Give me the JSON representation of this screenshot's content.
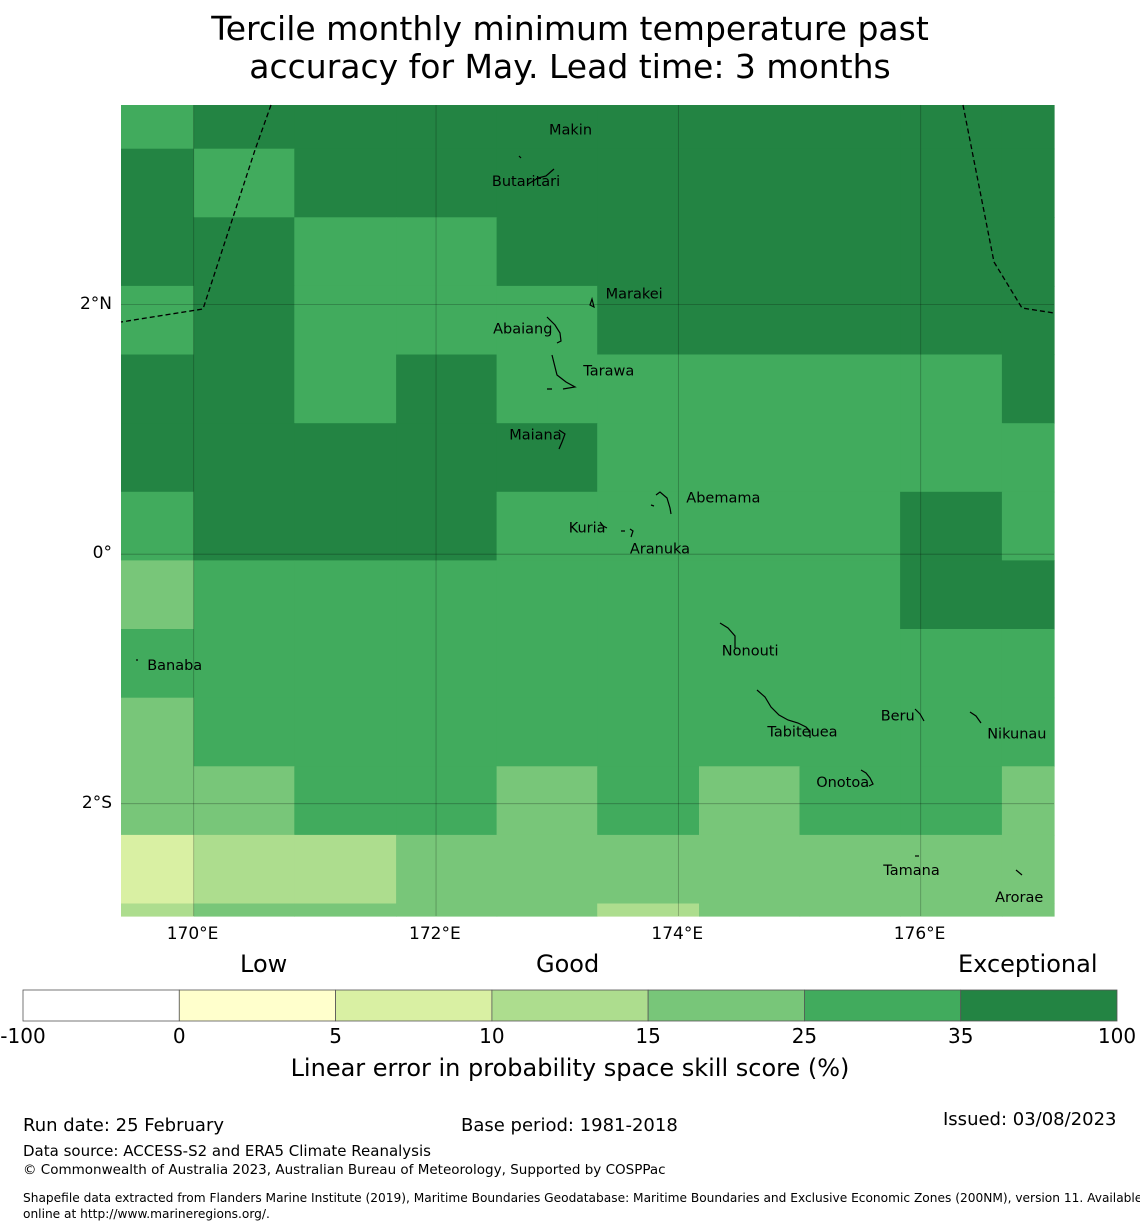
{
  "title": {
    "line1": "Tercile monthly minimum temperature past",
    "line2": "accuracy for May. Lead time: 3 months"
  },
  "map": {
    "lon_range": [
      169.4,
      177.1
    ],
    "lat_range": [
      -2.9,
      3.6
    ],
    "x_ticks": [
      {
        "lon": 170,
        "label": "170°E"
      },
      {
        "lon": 172,
        "label": "172°E"
      },
      {
        "lon": 174,
        "label": "174°E"
      },
      {
        "lon": 176,
        "label": "176°E"
      }
    ],
    "y_ticks": [
      {
        "lat": 2,
        "label": "2°N"
      },
      {
        "lat": 0,
        "label": "0°"
      },
      {
        "lat": -2,
        "label": "2°S"
      }
    ],
    "grid_cells_lon": [
      169.4,
      170.0,
      170.83,
      171.67,
      172.5,
      173.33,
      174.17,
      175.0,
      175.83,
      176.67,
      177.1
    ],
    "grid_cells_lat": [
      3.6,
      3.25,
      2.7,
      2.15,
      1.6,
      1.05,
      0.5,
      -0.05,
      -0.6,
      -1.15,
      -1.7,
      -2.25,
      -2.8,
      -2.9
    ],
    "skill_categories": [
      [
        5,
        6,
        6,
        6,
        6,
        6,
        6,
        6,
        6,
        6
      ],
      [
        6,
        5,
        6,
        6,
        6,
        6,
        6,
        6,
        6,
        6
      ],
      [
        6,
        6,
        5,
        5,
        6,
        6,
        6,
        6,
        6,
        6
      ],
      [
        5,
        6,
        5,
        5,
        5,
        6,
        6,
        6,
        6,
        6
      ],
      [
        6,
        6,
        5,
        6,
        5,
        5,
        5,
        5,
        5,
        6
      ],
      [
        6,
        6,
        6,
        6,
        6,
        5,
        5,
        5,
        5,
        5
      ],
      [
        5,
        6,
        6,
        6,
        5,
        5,
        5,
        5,
        6,
        5
      ],
      [
        4,
        5,
        5,
        5,
        5,
        5,
        5,
        5,
        6,
        6
      ],
      [
        5,
        5,
        5,
        5,
        5,
        5,
        5,
        5,
        5,
        5
      ],
      [
        4,
        5,
        5,
        5,
        5,
        5,
        5,
        5,
        5,
        5
      ],
      [
        4,
        4,
        5,
        5,
        4,
        5,
        4,
        5,
        5,
        4
      ],
      [
        2,
        3,
        3,
        4,
        4,
        4,
        4,
        4,
        4,
        4
      ],
      [
        3,
        4,
        4,
        4,
        4,
        3,
        4,
        4,
        4,
        4
      ]
    ],
    "islands": [
      {
        "name": "Makin",
        "lon": 172.85,
        "lat": 3.3
      },
      {
        "name": "Butaritari",
        "lon": 172.75,
        "lat": 3.0
      },
      {
        "name": "Marakei",
        "lon": 173.3,
        "lat": 2.0
      },
      {
        "name": "Abaiang",
        "lon": 172.95,
        "lat": 1.8
      },
      {
        "name": "Tarawa",
        "lon": 173.05,
        "lat": 1.4
      },
      {
        "name": "Maiana",
        "lon": 173.0,
        "lat": 0.95
      },
      {
        "name": "Abemama",
        "lon": 173.9,
        "lat": 0.4
      },
      {
        "name": "Kuria",
        "lon": 173.4,
        "lat": 0.22
      },
      {
        "name": "Aranuka",
        "lon": 173.6,
        "lat": 0.15
      },
      {
        "name": "Banaba",
        "lon": 169.55,
        "lat": -0.85
      },
      {
        "name": "Nonouti",
        "lon": 174.4,
        "lat": -0.7
      },
      {
        "name": "Tabiteuea",
        "lon": 174.9,
        "lat": -1.3
      },
      {
        "name": "Beru",
        "lon": 176.0,
        "lat": -1.35
      },
      {
        "name": "Nikunau",
        "lon": 176.45,
        "lat": -1.35
      },
      {
        "name": "Onotoa",
        "lon": 175.55,
        "lat": -1.8
      },
      {
        "name": "Tamana",
        "lon": 175.98,
        "lat": -2.5
      },
      {
        "name": "Arorae",
        "lon": 176.82,
        "lat": -2.65
      }
    ]
  },
  "legend": {
    "category_labels": [
      "Low",
      "Good",
      "Exceptional"
    ],
    "ticks": [
      "-100",
      "0",
      "5",
      "10",
      "15",
      "25",
      "35",
      "100"
    ],
    "colors": [
      "#ffffff",
      "#ffffcc",
      "#d9f0a3",
      "#addd8e",
      "#78c679",
      "#41ab5d",
      "#238443"
    ],
    "title": "Linear error in probability space skill score (%)"
  },
  "footer": {
    "run_date": "Run date: 25 February",
    "base_period": "Base period: 1981-2018",
    "issued": "Issued: 03/08/2023",
    "data_source": "Data source: ACCESS-S2 and ERA5 Climate Reanalysis",
    "copyright": "© Commonwealth of Australia 2023, Australian Bureau of Meteorology, Supported by COSPPac",
    "shapefile_line1": "Shapefile data extracted from Flanders Marine Institute (2019), Maritime Boundaries Geodatabase: Maritime Boundaries and Exclusive Economic Zones (200NM), version 11. Available",
    "shapefile_line2": "online at http://www.marineregions.org/."
  }
}
